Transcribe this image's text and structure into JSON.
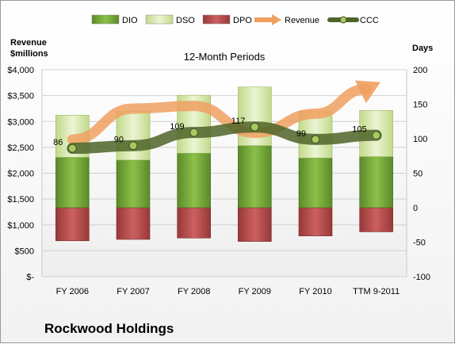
{
  "chart_data": {
    "type": "bar",
    "title": "12-Month Periods",
    "company": "Rockwood Holdings",
    "categories": [
      "FY 2006",
      "FY 2007",
      "FY 2008",
      "FY 2009",
      "FY 2010",
      "TTM 9-2011"
    ],
    "left_axis": {
      "label_line1": "Revenue",
      "label_line2": "$millions",
      "ticks": [
        "$-",
        "$500",
        "$1,000",
        "$1,500",
        "$2,000",
        "$2,500",
        "$3,000",
        "$3,500",
        "$4,000"
      ],
      "range": [
        0,
        4000
      ]
    },
    "right_axis": {
      "label": "Days",
      "ticks": [
        "-100",
        "-50",
        "0",
        "50",
        "100",
        "150",
        "200"
      ],
      "range": [
        -100,
        200
      ]
    },
    "legend": {
      "position": "top",
      "items": [
        {
          "name": "DIO",
          "kind": "bar",
          "color": "#6a9a30"
        },
        {
          "name": "DSO",
          "kind": "bar",
          "color": "#d4e6a6"
        },
        {
          "name": "DPO",
          "kind": "bar",
          "color": "#b04848"
        },
        {
          "name": "Revenue",
          "kind": "arrow",
          "color": "#f0a060"
        },
        {
          "name": "CCC",
          "kind": "line",
          "color": "#4e6428"
        }
      ]
    },
    "series": [
      {
        "name": "DIO",
        "axis": "right",
        "values": [
          73,
          69,
          79,
          90,
          72,
          74
        ]
      },
      {
        "name": "DSO",
        "axis": "right",
        "values": [
          61,
          71,
          84,
          85,
          68,
          67
        ]
      },
      {
        "name": "DPO",
        "axis": "right",
        "values": [
          -48,
          -46,
          -44,
          -49,
          -41,
          -35
        ]
      },
      {
        "name": "CCC",
        "axis": "right",
        "values": [
          86,
          90,
          109,
          117,
          99,
          105
        ]
      },
      {
        "name": "Revenue",
        "axis": "left",
        "values": [
          2650,
          3250,
          3300,
          2780,
          3150,
          3720
        ]
      }
    ],
    "colors": {
      "dio": "#6a9a30",
      "dso": "#d4e6a6",
      "dpo": "#b04848",
      "revenue": "#f0a060",
      "ccc": "#4e6428"
    }
  }
}
